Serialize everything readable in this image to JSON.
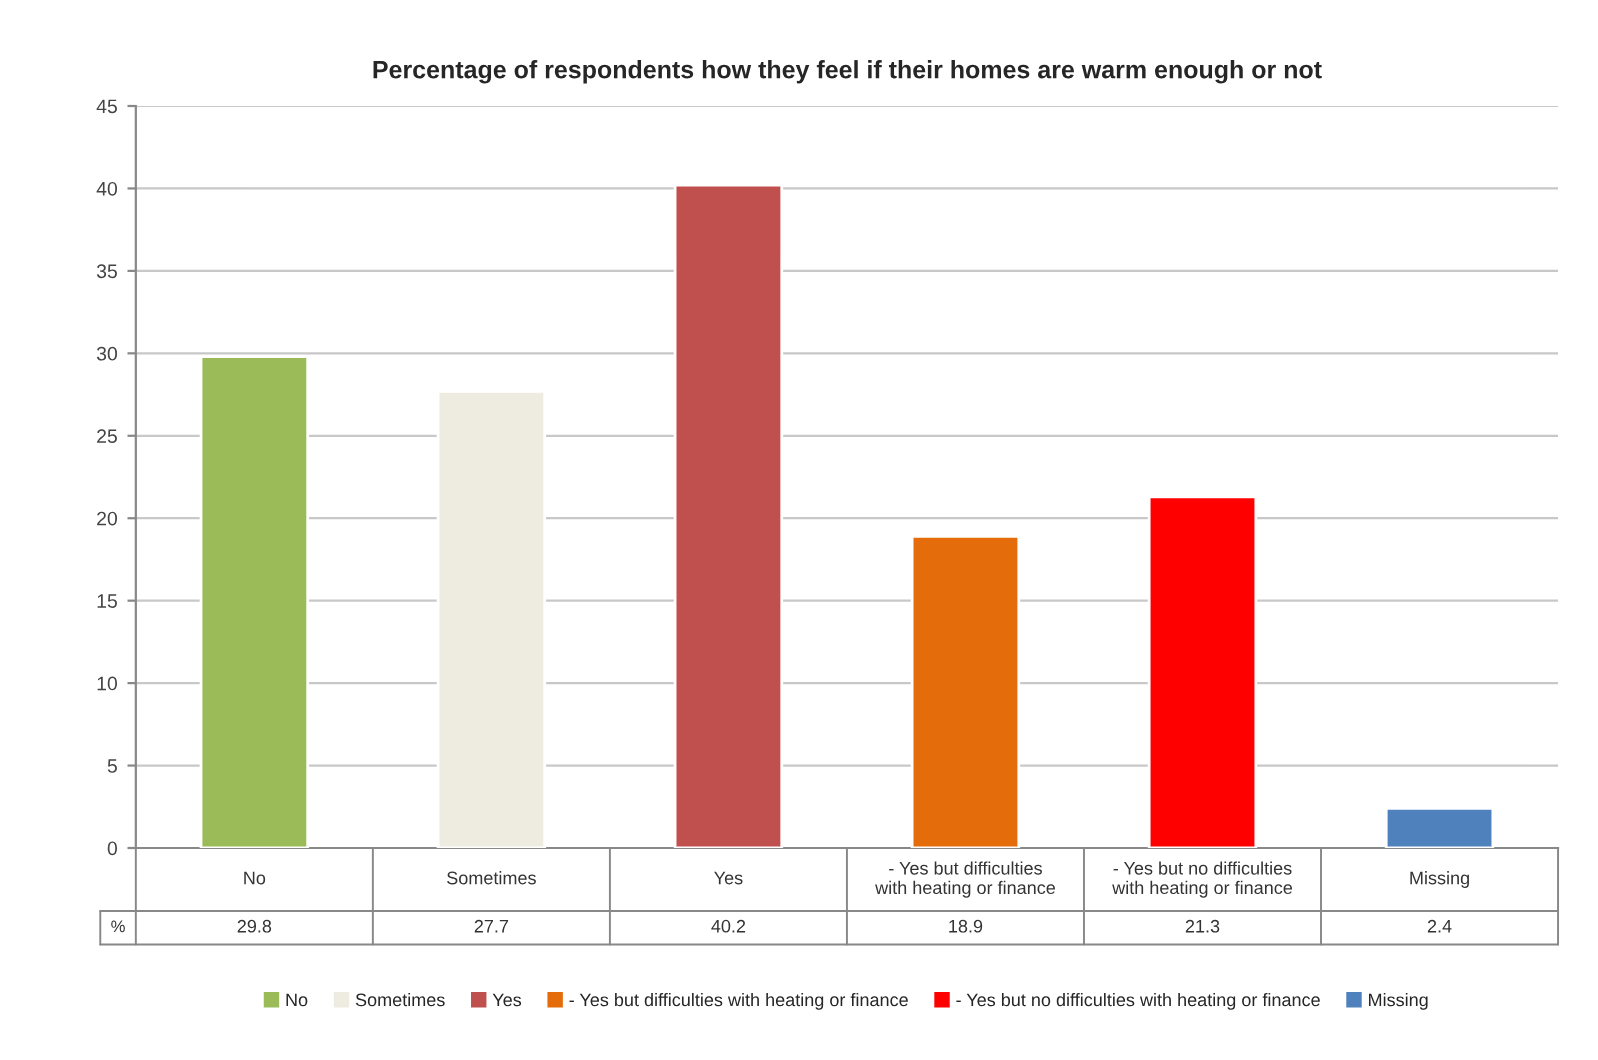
{
  "chart_data": {
    "type": "bar",
    "title": "Percentage of respondents how they feel if their homes are warm enough or not",
    "categories": [
      "No",
      "Sometimes",
      "Yes",
      "- Yes but difficulties with heating or finance",
      "- Yes but no difficulties with heating or finance",
      "Missing"
    ],
    "values": [
      29.8,
      27.7,
      40.2,
      18.9,
      21.3,
      2.4
    ],
    "colors": [
      "#9bbb59",
      "#eeece1",
      "#c0504d",
      "#e46c0a",
      "#ff0000",
      "#4f81bd"
    ],
    "ylim": [
      0,
      45
    ],
    "yticks": [
      0,
      5,
      10,
      15,
      20,
      25,
      30,
      35,
      40,
      45
    ],
    "grid": "y",
    "data_labels": true,
    "annotations": [
      "%"
    ]
  }
}
